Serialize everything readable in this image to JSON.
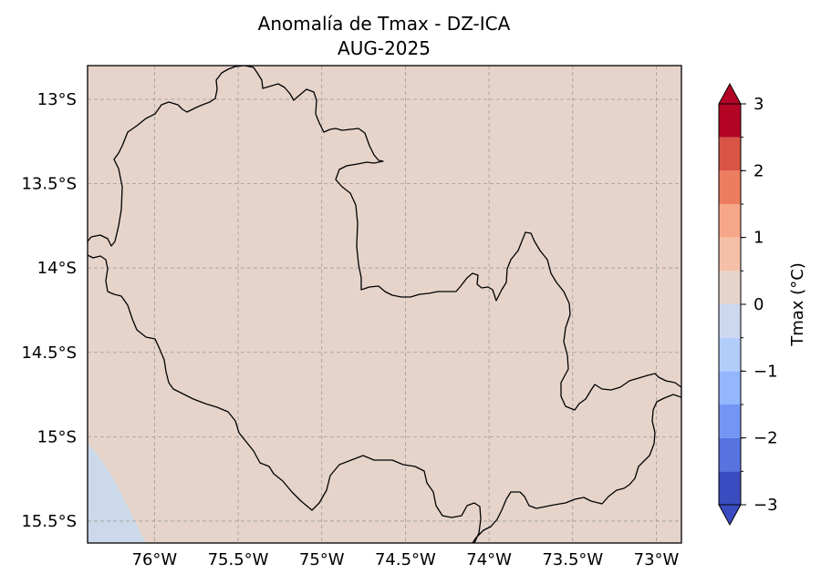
{
  "title": {
    "line1": "Anomalía de Tmax - DZ-ICA",
    "line2": "AUG-2025"
  },
  "map": {
    "lon_range": [
      -76.4,
      -72.85
    ],
    "lat_range": [
      -15.63,
      -12.8
    ],
    "background_color": "#e6d4cb",
    "cold_region_color": "#ccd9ea",
    "gridlines": true,
    "x_ticks": [
      {
        "value": -76.0,
        "label": "76°W"
      },
      {
        "value": -75.5,
        "label": "75.5°W"
      },
      {
        "value": -75.0,
        "label": "75°W"
      },
      {
        "value": -74.5,
        "label": "74.5°W"
      },
      {
        "value": -74.0,
        "label": "74°W"
      },
      {
        "value": -73.5,
        "label": "73.5°W"
      },
      {
        "value": -73.0,
        "label": "73°W"
      }
    ],
    "y_ticks": [
      {
        "value": -13.0,
        "label": "13°S"
      },
      {
        "value": -13.5,
        "label": "13.5°S"
      },
      {
        "value": -14.0,
        "label": "14°S"
      },
      {
        "value": -14.5,
        "label": "14.5°S"
      },
      {
        "value": -15.0,
        "label": "15°S"
      },
      {
        "value": -15.5,
        "label": "15.5°S"
      }
    ]
  },
  "colorbar": {
    "label": "Tmax (°C)",
    "range": [
      -3,
      3
    ],
    "extend": "both",
    "levels": [
      -3,
      -2.5,
      -2,
      -1.5,
      -1,
      -0.5,
      0,
      0.5,
      1,
      1.5,
      2,
      2.5,
      3
    ],
    "colors": [
      "#3b4cc0",
      "#5673e0",
      "#7396f5",
      "#94b6ff",
      "#b3cdfb",
      "#cbd8ee",
      "#e6d4cb",
      "#f5c0a7",
      "#f7a789",
      "#ec7d5e",
      "#d95445",
      "#b40426"
    ],
    "under_color": "#3b4cc0",
    "over_color": "#b40426",
    "ticks": [
      {
        "value": 3,
        "label": "3"
      },
      {
        "value": 2,
        "label": "2"
      },
      {
        "value": 1,
        "label": "1"
      },
      {
        "value": 0,
        "label": "0"
      },
      {
        "value": -1,
        "label": "−1"
      },
      {
        "value": -2,
        "label": "−2"
      },
      {
        "value": -3,
        "label": "−3"
      }
    ]
  }
}
